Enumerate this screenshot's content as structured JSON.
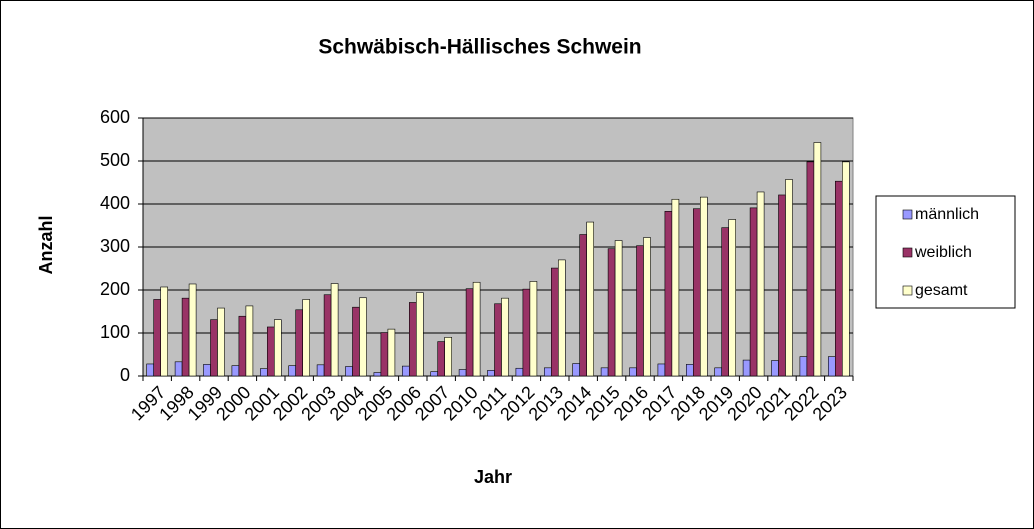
{
  "chart_data": {
    "type": "bar",
    "title": "Schwäbisch-Hällisches Schwein",
    "x_label": "Jahr",
    "y_label": "Anzahl",
    "categories": [
      "1997",
      "1998",
      "1999",
      "2000",
      "2001",
      "2002",
      "2003",
      "2004",
      "2005",
      "2006",
      "2007",
      "2010",
      "2011",
      "2012",
      "2013",
      "2014",
      "2015",
      "2016",
      "2017",
      "2018",
      "2019",
      "2020",
      "2021",
      "2022",
      "2023"
    ],
    "series": [
      {
        "name": "männlich",
        "color": "#9999ff",
        "values": [
          28,
          33,
          27,
          24,
          17,
          24,
          26,
          22,
          8,
          23,
          10,
          15,
          13,
          18,
          19,
          29,
          19,
          19,
          28,
          27,
          19,
          37,
          36,
          45,
          45
        ]
      },
      {
        "name": "weiblich",
        "color": "#993366",
        "values": [
          178,
          181,
          131,
          139,
          114,
          154,
          189,
          160,
          101,
          171,
          80,
          203,
          168,
          202,
          251,
          329,
          296,
          303,
          383,
          389,
          345,
          391,
          421,
          498,
          453
        ]
      },
      {
        "name": "gesamt",
        "color": "#ffffcc",
        "values": [
          207,
          214,
          158,
          163,
          131,
          178,
          215,
          182,
          109,
          194,
          90,
          218,
          181,
          220,
          270,
          358,
          315,
          322,
          411,
          416,
          364,
          428,
          457,
          543,
          498
        ]
      }
    ],
    "ylim": [
      0,
      600
    ],
    "yticks": [
      0,
      100,
      200,
      300,
      400,
      500,
      600
    ],
    "grid": true,
    "legend": "right"
  }
}
